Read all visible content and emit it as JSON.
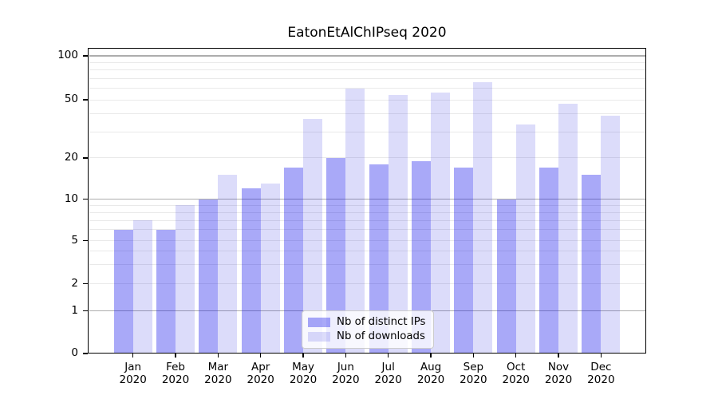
{
  "title": "EatonEtAlChIPseq 2020",
  "chart_data": {
    "type": "bar",
    "title": "EatonEtAlChIPseq 2020",
    "categories": [
      "Jan 2020",
      "Feb 2020",
      "Mar 2020",
      "Apr 2020",
      "May 2020",
      "Jun 2020",
      "Jul 2020",
      "Aug 2020",
      "Sep 2020",
      "Oct 2020",
      "Nov 2020",
      "Dec 2020"
    ],
    "series": [
      {
        "name": "Nb of distinct IPs",
        "color": "rgba(10,10,235,0.35)",
        "solid_color": "#a9a9f8",
        "values": [
          6,
          6,
          10,
          12,
          17,
          20,
          18,
          19,
          17,
          10,
          17,
          15
        ]
      },
      {
        "name": "Nb of downloads",
        "color": "rgba(10,10,220,0.14)",
        "solid_color": "#dcdcfa",
        "values": [
          7,
          9,
          15,
          13,
          37,
          60,
          54,
          56,
          66,
          34,
          47,
          39
        ]
      }
    ],
    "xlabel": "",
    "ylabel": "",
    "yscale": "asinh (log-like above 1, linear between 0 and 1)",
    "yticks": [
      0,
      1,
      2,
      5,
      10,
      20,
      50,
      100
    ],
    "minor_gridlines": [
      2,
      3,
      4,
      5,
      6,
      7,
      8,
      9,
      20,
      30,
      40,
      50,
      60,
      70,
      80,
      90
    ],
    "major_gridlines": [
      1,
      10,
      100
    ],
    "ylim": [
      0,
      113
    ],
    "grid": true,
    "legend_position": "lower center",
    "colors": {
      "spine": "#000000",
      "major_grid": "#adadad",
      "minor_grid": "#e9e9e9",
      "legend_border": "#cccccc"
    }
  }
}
